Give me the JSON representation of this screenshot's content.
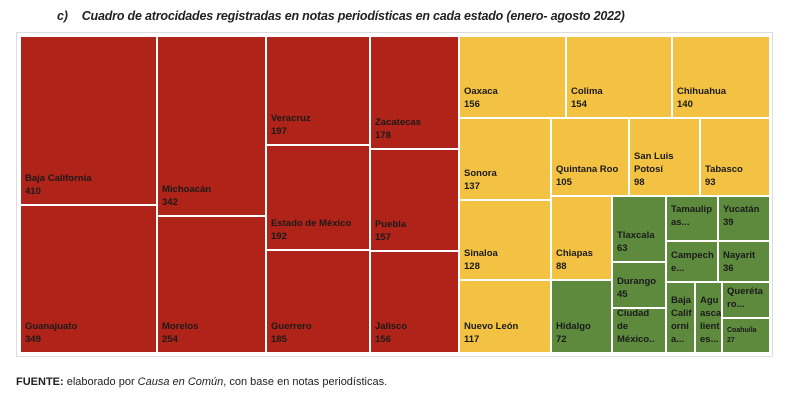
{
  "title": {
    "label": "c)",
    "text": "Cuadro de atrocidades registradas en notas periodísticas en cada estado (enero- agosto 2022)"
  },
  "colors": {
    "high": "#b02318",
    "mid": "#f3c242",
    "low": "#5e8a3e"
  },
  "chart_data": {
    "type": "treemap",
    "title": "Cuadro de atrocidades registradas en notas periodísticas en cada estado (enero- agosto 2022)",
    "items": [
      {
        "label": "Baja California",
        "value": 410,
        "group": "high"
      },
      {
        "label": "Guanajuato",
        "value": 349,
        "group": "high"
      },
      {
        "label": "Michoacán",
        "value": 342,
        "group": "high"
      },
      {
        "label": "Morelos",
        "value": 254,
        "group": "high"
      },
      {
        "label": "Veracruz",
        "value": 197,
        "group": "high"
      },
      {
        "label": "Estado de México",
        "value": 192,
        "group": "high"
      },
      {
        "label": "Guerrero",
        "value": 185,
        "group": "high"
      },
      {
        "label": "Zacatecas",
        "value": 178,
        "group": "high"
      },
      {
        "label": "Puebla",
        "value": 157,
        "group": "high"
      },
      {
        "label": "Jalisco",
        "value": 156,
        "group": "high"
      },
      {
        "label": "Oaxaca",
        "value": 156,
        "group": "mid"
      },
      {
        "label": "Colima",
        "value": 154,
        "group": "mid"
      },
      {
        "label": "Chihuahua",
        "value": 140,
        "group": "mid"
      },
      {
        "label": "Sonora",
        "value": 137,
        "group": "mid"
      },
      {
        "label": "Sinaloa",
        "value": 128,
        "group": "mid"
      },
      {
        "label": "Nuevo León",
        "value": 117,
        "group": "mid"
      },
      {
        "label": "Quintana Roo",
        "value": 105,
        "group": "mid"
      },
      {
        "label": "San Luis Potosí",
        "value": 98,
        "group": "mid"
      },
      {
        "label": "Tabasco",
        "value": 93,
        "group": "mid"
      },
      {
        "label": "Chiapas",
        "value": 88,
        "group": "mid"
      },
      {
        "label": "Hidalgo",
        "value": 72,
        "group": "low"
      },
      {
        "label": "Tlaxcala",
        "value": 63,
        "group": "low"
      },
      {
        "label": "Durango",
        "value": 45,
        "group": "low"
      },
      {
        "label": "Ciudad de México..",
        "value": null,
        "group": "low"
      },
      {
        "label": "Tamaulipas...",
        "value": null,
        "group": "low"
      },
      {
        "label": "Yucatán",
        "value": 39,
        "group": "low"
      },
      {
        "label": "Campeche...",
        "value": null,
        "group": "low"
      },
      {
        "label": "Nayarit",
        "value": 36,
        "group": "low"
      },
      {
        "label": "Baja California...",
        "value": null,
        "group": "low"
      },
      {
        "label": "Aguascalientes...",
        "value": null,
        "group": "low"
      },
      {
        "label": "Querétaro...",
        "value": null,
        "group": "low"
      },
      {
        "label": "Coahuila",
        "value": 27,
        "group": "low"
      }
    ]
  },
  "footer": {
    "bold": "FUENTE:",
    "pre": " elaborado por ",
    "italic": "Causa en Común",
    "post": ", con base en notas periodísticas."
  }
}
